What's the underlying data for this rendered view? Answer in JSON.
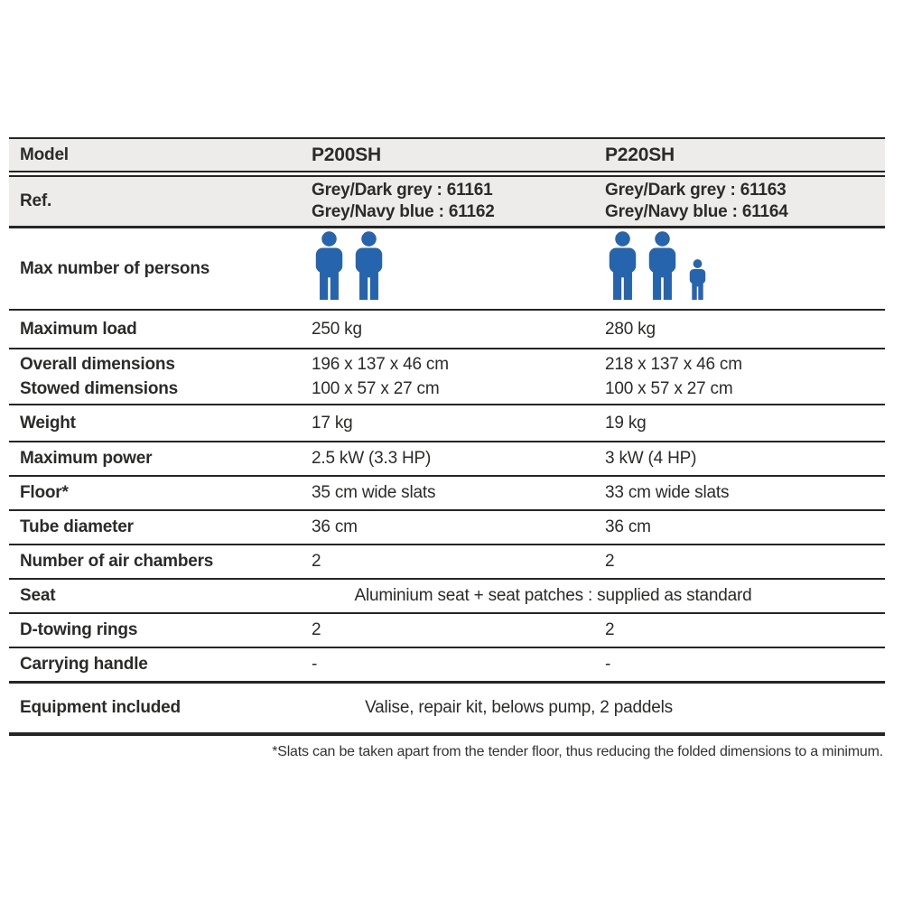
{
  "colors": {
    "accent_blue": "#2664ae",
    "header_bg": "#edecea",
    "ink": "#2c2b29"
  },
  "header": {
    "model_label": "Model",
    "models": [
      "P200SH",
      "P220SH"
    ]
  },
  "ref": {
    "label": "Ref.",
    "col1": [
      {
        "color_name": "Grey/Dark grey :",
        "code": "61161"
      },
      {
        "color_name": "Grey/Navy blue :",
        "code": "61162"
      }
    ],
    "col2": [
      {
        "color_name": "Grey/Dark grey :",
        "code": "61163"
      },
      {
        "color_name": "Grey/Navy blue :",
        "code": "61164"
      }
    ]
  },
  "persons": {
    "label": "Max number of persons",
    "col1": {
      "adults": 2,
      "children": 0
    },
    "col2": {
      "adults": 2,
      "children": 1
    }
  },
  "specs": {
    "max_load": {
      "label": "Maximum load",
      "col1": "250 kg",
      "col2": "280 kg"
    },
    "dimensions": {
      "label_line1": "Overall dimensions",
      "label_line2": "Stowed dimensions",
      "col1_line1": "196 x 137 x 46 cm",
      "col1_line2": "100 x 57 x 27 cm",
      "col2_line1": "218 x 137 x 46 cm",
      "col2_line2": "100 x 57 x 27 cm"
    },
    "weight": {
      "label": "Weight",
      "col1": "17 kg",
      "col2": "19 kg"
    },
    "max_power": {
      "label": "Maximum power",
      "col1": "2.5 kW (3.3 HP)",
      "col2": "3 kW (4 HP)"
    },
    "floor": {
      "label": "Floor*",
      "col1": "35 cm wide slats",
      "col2": "33 cm wide slats"
    },
    "tube_diameter": {
      "label": "Tube diameter",
      "col1": "36 cm",
      "col2": "36 cm"
    },
    "air_chambers": {
      "label": "Number of air chambers",
      "col1": "2",
      "col2": "2"
    },
    "seat": {
      "label": "Seat",
      "value": "Aluminium seat + seat patches : supplied as standard"
    },
    "d_towing_rings": {
      "label": "D-towing rings",
      "col1": "2",
      "col2": "2"
    },
    "carrying_handle": {
      "label": "Carrying handle",
      "col1": "-",
      "col2": "-"
    }
  },
  "equipment": {
    "label": "Equipment included",
    "value": "Valise, repair kit, belows pump, 2 paddels"
  },
  "footnote": "*Slats can be taken apart from the tender floor, thus reducing the folded dimensions to a minimum."
}
